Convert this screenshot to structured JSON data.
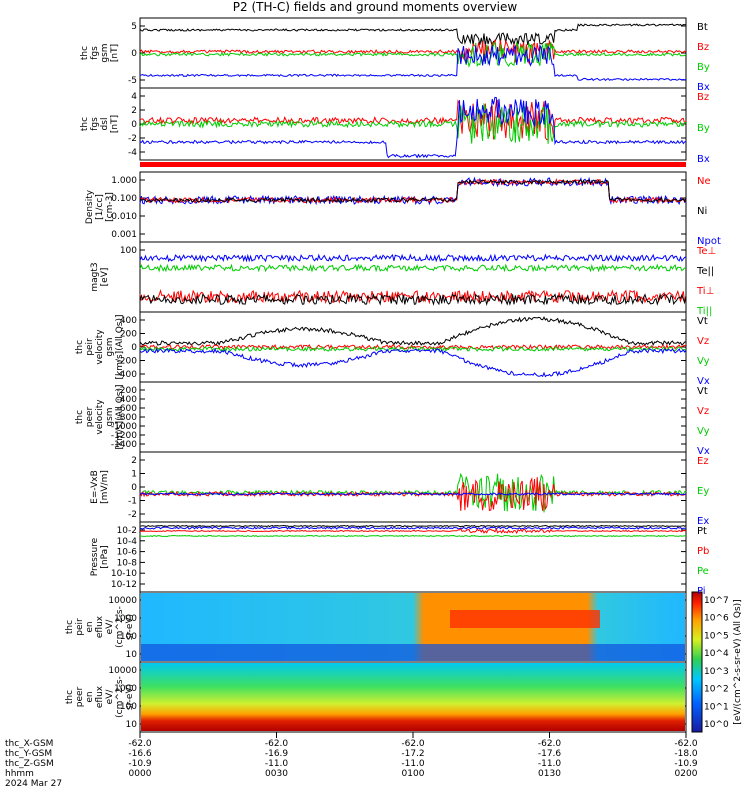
{
  "title": "P2 (TH-C) fields and ground moments overview",
  "date": "2024 Mar 27",
  "chart_data": {
    "type": "line",
    "panels": [
      {
        "id": "fgs",
        "ylabel": [
          "thc",
          "fgs",
          "gsm",
          "[nT]"
        ],
        "yticks": [
          "5",
          "0",
          "-5"
        ],
        "series": [
          {
            "name": "Bt",
            "color": "#000000"
          },
          {
            "name": "Bz",
            "color": "#ff0000"
          },
          {
            "name": "By",
            "color": "#00cc00"
          },
          {
            "name": "Bx",
            "color": "#0000ff"
          }
        ]
      },
      {
        "id": "fgs_dsl",
        "ylabel": [
          "thc",
          "fgs",
          "dsl",
          "[nT]"
        ],
        "yticks": [
          "4",
          "2",
          "0",
          "-2",
          "-4"
        ],
        "series": [
          {
            "name": "Bz",
            "color": "#ff0000"
          },
          {
            "name": "By",
            "color": "#00cc00"
          },
          {
            "name": "Bx",
            "color": "#0000ff"
          }
        ]
      },
      {
        "id": "density",
        "ylabel": [
          "Density",
          "[1/cc]",
          "[cm-3]"
        ],
        "yticks": [
          "1.000",
          "0.100",
          "0.010",
          "0.001"
        ],
        "series": [
          {
            "name": "Ne",
            "color": "#ff0000"
          },
          {
            "name": "Ni",
            "color": "#000000"
          },
          {
            "name": "Npot",
            "color": "#0000ff"
          }
        ]
      },
      {
        "id": "temp",
        "ylabel": [
          "magt3",
          "[eV]"
        ],
        "yticks": [
          "100"
        ],
        "series": [
          {
            "name": "Te⊥",
            "color": "#ff0000"
          },
          {
            "name": "Te||",
            "color": "#000000"
          },
          {
            "name": "Ti⊥",
            "color": "#ff0000"
          },
          {
            "name": "Ti||",
            "color": "#00cc00"
          }
        ]
      },
      {
        "id": "vi",
        "ylabel": [
          "thc",
          "peir",
          "velocity",
          "gsm",
          "[km/s](All Qs)]"
        ],
        "yticks": [
          "400",
          "200",
          "0",
          "-200",
          "-400"
        ],
        "series": [
          {
            "name": "Vt",
            "color": "#000000"
          },
          {
            "name": "Vz",
            "color": "#ff0000"
          },
          {
            "name": "Vy",
            "color": "#00cc00"
          },
          {
            "name": "Vx",
            "color": "#0000ff"
          }
        ]
      },
      {
        "id": "ve",
        "ylabel": [
          "thc",
          "peer",
          "velocity",
          "gsm",
          "[km/s](All Qs)]"
        ],
        "yticks": [
          "-200",
          "-400",
          "-600",
          "-800",
          "-1000",
          "-1200",
          "-1400"
        ],
        "series": [
          {
            "name": "Vt",
            "color": "#000000"
          },
          {
            "name": "Vz",
            "color": "#ff0000"
          },
          {
            "name": "Vy",
            "color": "#00cc00"
          },
          {
            "name": "Vx",
            "color": "#0000ff"
          }
        ]
      },
      {
        "id": "efield",
        "ylabel": [
          "E=-VxB",
          "[mV/m]"
        ],
        "yticks": [
          "2",
          "1",
          "0",
          "-1",
          "-2"
        ],
        "series": [
          {
            "name": "Ez",
            "color": "#ff0000"
          },
          {
            "name": "Ey",
            "color": "#00cc00"
          },
          {
            "name": "Ex",
            "color": "#0000ff"
          }
        ]
      },
      {
        "id": "pressure",
        "ylabel": [
          "Pressure",
          "[nPa]"
        ],
        "yticks": [
          "10-2",
          "10-4",
          "10-6",
          "10-8",
          "10-10",
          "10-12"
        ],
        "series": [
          {
            "name": "Pt",
            "color": "#000000"
          },
          {
            "name": "Pb",
            "color": "#ff0000"
          },
          {
            "name": "Pe",
            "color": "#00cc00"
          },
          {
            "name": "Pi",
            "color": "#0000ff"
          }
        ]
      },
      {
        "id": "ion_spec",
        "ylabel": [
          "thc",
          "peir",
          "en",
          "eflux",
          "eV/",
          "(cm^2-s-",
          "sr-eV)"
        ],
        "yticks": [
          "10000",
          "1000",
          "100",
          "10"
        ]
      },
      {
        "id": "elec_spec",
        "ylabel": [
          "thc",
          "peer",
          "en",
          "eflux",
          "eV/",
          "(cm^2-s-",
          "sr-eV)"
        ],
        "yticks": [
          "10000",
          "1000",
          "100",
          "10"
        ]
      }
    ],
    "colorbar": {
      "ticks": [
        "10^7",
        "10^6",
        "10^5",
        "10^4",
        "10^3",
        "10^2",
        "10^1",
        "10^0"
      ],
      "label": "[eV/(cm^2-s-sr-eV) (All Qs)]"
    },
    "x_axis": {
      "row_labels": [
        "thc_X-GSM",
        "thc_Y-GSM",
        "thc_Z-GSM",
        "hhmm"
      ],
      "ticks": [
        {
          "x": "-62.0",
          "y": "-16.6",
          "z": "-10.9",
          "t": "0000"
        },
        {
          "x": "-62.0",
          "y": "-16.9",
          "z": "-11.0",
          "t": "0030"
        },
        {
          "x": "-62.0",
          "y": "-17.2",
          "z": "-11.0",
          "t": "0100"
        },
        {
          "x": "-62.0",
          "y": "-17.6",
          "z": "-11.0",
          "t": "0130"
        },
        {
          "x": "-62.0",
          "y": "-18.0",
          "z": "-10.9",
          "t": "0200"
        }
      ]
    }
  }
}
